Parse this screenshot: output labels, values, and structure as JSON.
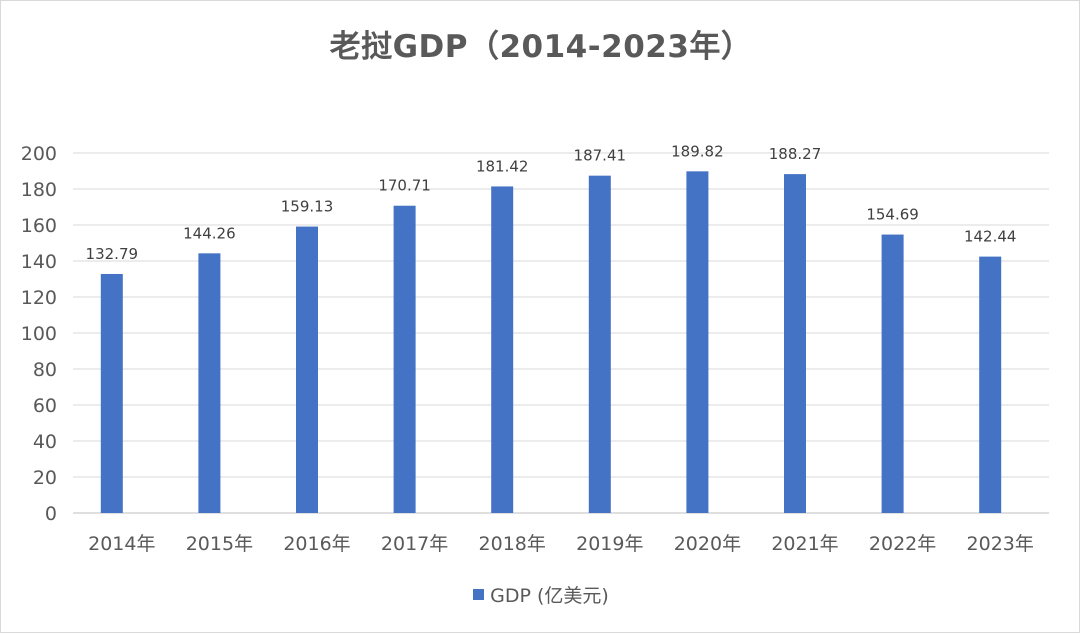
{
  "chart_data": {
    "type": "bar",
    "title": "老挝GDP（2014-2023年）",
    "categories": [
      "2014年",
      "2015年",
      "2016年",
      "2017年",
      "2018年",
      "2019年",
      "2020年",
      "2021年",
      "2022年",
      "2023年"
    ],
    "series": [
      {
        "name": "GDP (亿美元)",
        "values": [
          132.79,
          144.26,
          159.13,
          170.71,
          181.42,
          187.41,
          189.82,
          188.27,
          154.69,
          142.44
        ],
        "color": "#4472c4"
      }
    ],
    "y_ticks": [
      0,
      20,
      40,
      60,
      80,
      100,
      120,
      140,
      160,
      180,
      200
    ],
    "ylim": [
      0,
      200
    ],
    "grid": true,
    "legend_position": "bottom",
    "data_labels": true
  }
}
